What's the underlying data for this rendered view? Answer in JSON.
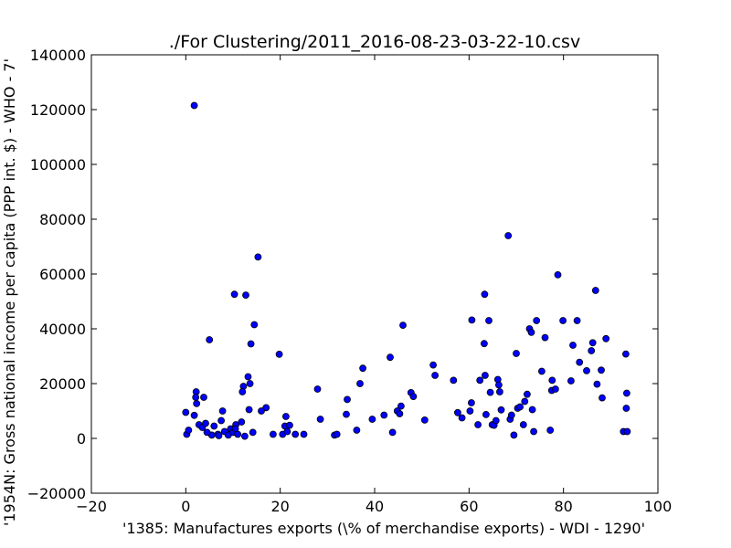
{
  "chart_data": {
    "type": "scatter",
    "title": "./For Clustering/2011_2016-08-23-03-22-10.csv",
    "xlabel": "'1385: Manufactures exports  (\\% of merchandise exports) - WDI - 1290'",
    "ylabel": "'1954N: Gross national income per capita (PPP int. $) - WHO - 7'",
    "xlim": [
      -20,
      100
    ],
    "ylim": [
      -20000,
      140000
    ],
    "xticks": [
      -20,
      0,
      20,
      40,
      60,
      80,
      100
    ],
    "yticks": [
      -20000,
      0,
      20000,
      40000,
      60000,
      80000,
      100000,
      120000,
      140000
    ],
    "grid": false,
    "marker_color": "#0000ff",
    "points": [
      [
        1.8,
        121500
      ],
      [
        15.3,
        66200
      ],
      [
        10.3,
        52600
      ],
      [
        12.7,
        52300
      ],
      [
        14.5,
        41500
      ],
      [
        5.0,
        36000
      ],
      [
        13.8,
        34500
      ],
      [
        19.8,
        30700
      ],
      [
        13.2,
        22500
      ],
      [
        13.6,
        20000
      ],
      [
        12.2,
        19000
      ],
      [
        12.0,
        17000
      ],
      [
        17.0,
        11200
      ],
      [
        16.0,
        10000
      ],
      [
        13.4,
        10500
      ],
      [
        11.8,
        6000
      ],
      [
        10.6,
        5000
      ],
      [
        9.5,
        3500
      ],
      [
        8.2,
        2500
      ],
      [
        7.8,
        10000
      ],
      [
        7.5,
        6500
      ],
      [
        6.0,
        4500
      ],
      [
        5.5,
        1200
      ],
      [
        4.5,
        2200
      ],
      [
        3.8,
        15000
      ],
      [
        2.2,
        17000
      ],
      [
        2.1,
        15000
      ],
      [
        2.3,
        12700
      ],
      [
        1.8,
        8400
      ],
      [
        0.0,
        9500
      ],
      [
        0.2,
        1500
      ],
      [
        0.6,
        3000
      ],
      [
        2.8,
        5000
      ],
      [
        3.5,
        4000
      ],
      [
        4.2,
        5500
      ],
      [
        6.8,
        1500
      ],
      [
        7.0,
        1000
      ],
      [
        9.0,
        1200
      ],
      [
        10.0,
        2200
      ],
      [
        10.5,
        3500
      ],
      [
        11.0,
        1500
      ],
      [
        12.5,
        800
      ],
      [
        14.2,
        2200
      ],
      [
        18.5,
        1500
      ],
      [
        20.5,
        1500
      ],
      [
        21.0,
        4500
      ],
      [
        21.2,
        8000
      ],
      [
        21.5,
        2500
      ],
      [
        22.0,
        4800
      ],
      [
        23.2,
        1500
      ],
      [
        25.0,
        1500
      ],
      [
        27.9,
        18000
      ],
      [
        28.5,
        7000
      ],
      [
        31.5,
        1200
      ],
      [
        32.0,
        1500
      ],
      [
        34.2,
        14200
      ],
      [
        34.0,
        8800
      ],
      [
        36.2,
        3000
      ],
      [
        36.9,
        20000
      ],
      [
        37.5,
        25600
      ],
      [
        39.5,
        7000
      ],
      [
        42.0,
        8500
      ],
      [
        43.3,
        29600
      ],
      [
        43.8,
        2200
      ],
      [
        44.8,
        10000
      ],
      [
        45.3,
        9000
      ],
      [
        45.6,
        11800
      ],
      [
        46.0,
        41300
      ],
      [
        47.7,
        16700
      ],
      [
        48.2,
        15300
      ],
      [
        50.6,
        6700
      ],
      [
        52.4,
        26800
      ],
      [
        52.8,
        23000
      ],
      [
        56.7,
        21200
      ],
      [
        57.6,
        9400
      ],
      [
        58.5,
        7500
      ],
      [
        60.2,
        10000
      ],
      [
        60.5,
        13000
      ],
      [
        60.6,
        43200
      ],
      [
        61.9,
        5000
      ],
      [
        62.3,
        21200
      ],
      [
        63.3,
        52600
      ],
      [
        63.2,
        34600
      ],
      [
        63.4,
        23000
      ],
      [
        63.6,
        8700
      ],
      [
        64.2,
        43000
      ],
      [
        64.5,
        16800
      ],
      [
        64.9,
        5000
      ],
      [
        65.3,
        4800
      ],
      [
        65.7,
        6500
      ],
      [
        66.1,
        21500
      ],
      [
        66.3,
        19500
      ],
      [
        66.5,
        17000
      ],
      [
        66.8,
        10400
      ],
      [
        68.3,
        74000
      ],
      [
        68.7,
        7000
      ],
      [
        69.0,
        8500
      ],
      [
        69.5,
        1200
      ],
      [
        70.0,
        31000
      ],
      [
        70.3,
        11000
      ],
      [
        70.8,
        11500
      ],
      [
        71.5,
        5000
      ],
      [
        71.8,
        13500
      ],
      [
        72.3,
        16100
      ],
      [
        72.8,
        40000
      ],
      [
        73.2,
        38700
      ],
      [
        73.4,
        10500
      ],
      [
        73.7,
        2500
      ],
      [
        74.3,
        43000
      ],
      [
        75.4,
        24500
      ],
      [
        76.1,
        36800
      ],
      [
        77.2,
        3000
      ],
      [
        77.6,
        21200
      ],
      [
        77.5,
        17500
      ],
      [
        78.3,
        18000
      ],
      [
        78.8,
        59700
      ],
      [
        79.9,
        43000
      ],
      [
        81.6,
        21000
      ],
      [
        82.0,
        34000
      ],
      [
        82.9,
        43000
      ],
      [
        83.4,
        27800
      ],
      [
        84.9,
        24700
      ],
      [
        85.9,
        32000
      ],
      [
        86.2,
        34900
      ],
      [
        86.8,
        54000
      ],
      [
        87.1,
        19800
      ],
      [
        88.0,
        24900
      ],
      [
        88.2,
        14800
      ],
      [
        89.0,
        36400
      ],
      [
        92.7,
        2500
      ],
      [
        93.2,
        30800
      ],
      [
        93.3,
        11000
      ],
      [
        93.4,
        16500
      ],
      [
        93.5,
        2500
      ]
    ]
  }
}
